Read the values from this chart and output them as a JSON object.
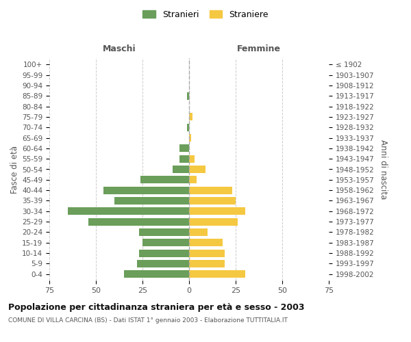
{
  "age_groups": [
    "0-4",
    "5-9",
    "10-14",
    "15-19",
    "20-24",
    "25-29",
    "30-34",
    "35-39",
    "40-44",
    "45-49",
    "50-54",
    "55-59",
    "60-64",
    "65-69",
    "70-74",
    "75-79",
    "80-84",
    "85-89",
    "90-94",
    "95-99",
    "100+"
  ],
  "birth_years": [
    "1998-2002",
    "1993-1997",
    "1988-1992",
    "1983-1987",
    "1978-1982",
    "1973-1977",
    "1968-1972",
    "1963-1967",
    "1958-1962",
    "1953-1957",
    "1948-1952",
    "1943-1947",
    "1938-1942",
    "1933-1937",
    "1928-1932",
    "1923-1927",
    "1918-1922",
    "1913-1917",
    "1908-1912",
    "1903-1907",
    "≤ 1902"
  ],
  "males": [
    35,
    28,
    27,
    25,
    27,
    54,
    65,
    40,
    46,
    26,
    9,
    5,
    5,
    0,
    1,
    0,
    0,
    1,
    0,
    0,
    0
  ],
  "females": [
    30,
    19,
    19,
    18,
    10,
    26,
    30,
    25,
    23,
    4,
    9,
    3,
    0,
    1,
    0,
    2,
    0,
    0,
    0,
    0,
    0
  ],
  "male_color": "#6a9e5a",
  "female_color": "#f5c842",
  "male_label": "Stranieri",
  "female_label": "Straniere",
  "title": "Popolazione per cittadinanza straniera per età e sesso - 2003",
  "subtitle": "COMUNE DI VILLA CARCINA (BS) - Dati ISTAT 1° gennaio 2003 - Elaborazione TUTTITALIA.IT",
  "xlabel_left": "Maschi",
  "xlabel_right": "Femmine",
  "ylabel_left": "Fasce di età",
  "ylabel_right": "Anni di nascita",
  "xlim": 75,
  "grid_color": "#cccccc",
  "zero_line_color": "#aaaaaa"
}
